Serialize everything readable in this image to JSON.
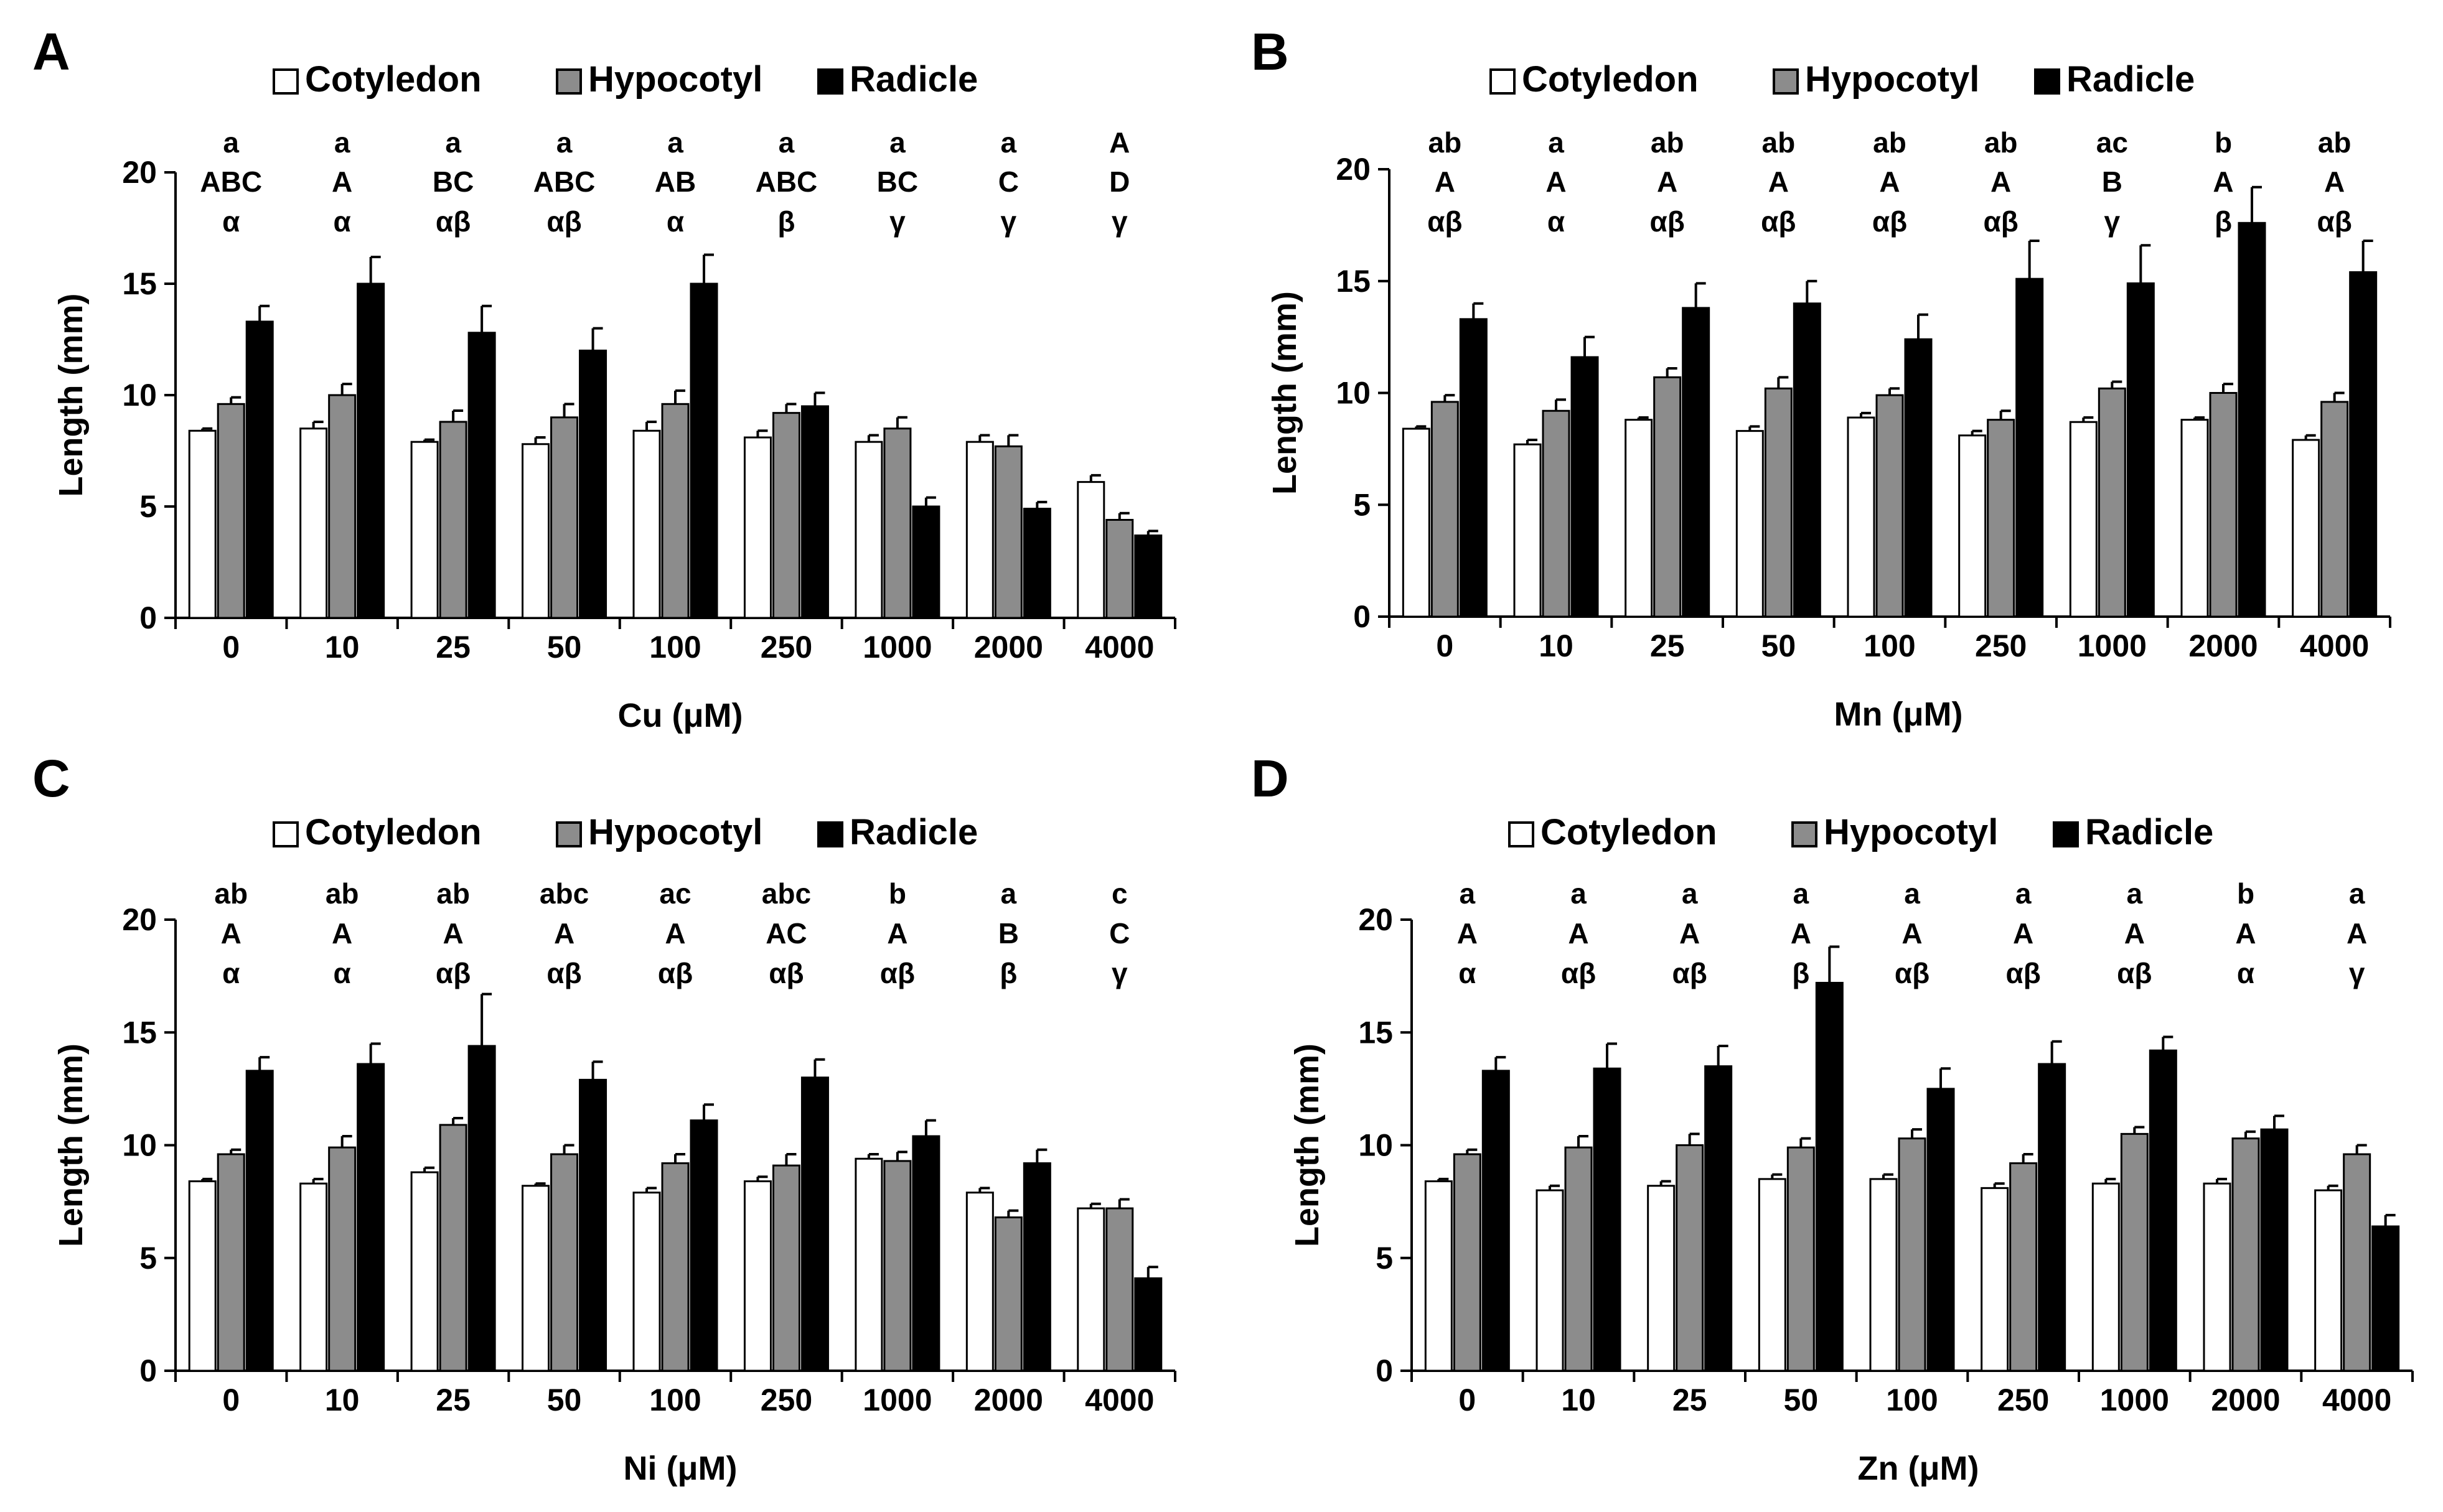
{
  "colors": {
    "Cotyledon": "#ffffff",
    "Hypocotyl": "#8c8c8c",
    "Radicle": "#000000",
    "axis": "#000000"
  },
  "chart_data": [
    {
      "type": "bar",
      "panel": "A",
      "xlabel": "Cu (μM)",
      "ylabel": "Length (mm)",
      "ylim": [
        0,
        20
      ],
      "yticks": [
        0,
        5,
        10,
        15,
        20
      ],
      "grid": false,
      "legend": "top",
      "categories": [
        "0",
        "10",
        "25",
        "50",
        "100",
        "250",
        "1000",
        "2000",
        "4000"
      ],
      "series": [
        {
          "name": "Cotyledon",
          "values": [
            8.4,
            8.5,
            7.9,
            7.8,
            8.4,
            8.1,
            7.9,
            7.9,
            6.1
          ],
          "errors": [
            0.1,
            0.3,
            0.1,
            0.3,
            0.4,
            0.3,
            0.3,
            0.3,
            0.3
          ]
        },
        {
          "name": "Hypocotyl",
          "values": [
            9.6,
            10.0,
            8.8,
            9.0,
            9.6,
            9.2,
            8.5,
            7.7,
            4.4
          ],
          "errors": [
            0.3,
            0.5,
            0.5,
            0.6,
            0.6,
            0.4,
            0.5,
            0.5,
            0.3
          ]
        },
        {
          "name": "Radicle",
          "values": [
            13.3,
            15.0,
            12.8,
            12.0,
            15.0,
            9.5,
            5.0,
            4.9,
            3.7
          ],
          "errors": [
            0.7,
            1.2,
            1.2,
            1.0,
            1.3,
            0.6,
            0.4,
            0.3,
            0.2
          ]
        }
      ],
      "sig_letters": [
        [
          "a",
          "ABC",
          "α"
        ],
        [
          "a",
          "A",
          "α"
        ],
        [
          "a",
          "BC",
          "αβ"
        ],
        [
          "a",
          "ABC",
          "αβ"
        ],
        [
          "a",
          "AB",
          "α"
        ],
        [
          "a",
          "ABC",
          "β"
        ],
        [
          "a",
          "BC",
          "γ"
        ],
        [
          "a",
          "C",
          "γ"
        ],
        [
          "A",
          "D",
          "γ"
        ]
      ]
    },
    {
      "type": "bar",
      "panel": "B",
      "xlabel": "Mn (μM)",
      "ylabel": "Length (mm)",
      "ylim": [
        0,
        20
      ],
      "yticks": [
        0,
        5,
        10,
        15,
        20
      ],
      "grid": false,
      "legend": "top",
      "categories": [
        "0",
        "10",
        "25",
        "50",
        "100",
        "250",
        "1000",
        "2000",
        "4000"
      ],
      "series": [
        {
          "name": "Cotyledon",
          "values": [
            8.4,
            7.7,
            8.8,
            8.3,
            8.9,
            8.1,
            8.7,
            8.8,
            7.9
          ],
          "errors": [
            0.1,
            0.2,
            0.1,
            0.2,
            0.2,
            0.2,
            0.2,
            0.1,
            0.2
          ]
        },
        {
          "name": "Hypocotyl",
          "values": [
            9.6,
            9.2,
            10.7,
            10.2,
            9.9,
            8.8,
            10.2,
            10.0,
            9.6
          ],
          "errors": [
            0.3,
            0.5,
            0.4,
            0.5,
            0.3,
            0.4,
            0.3,
            0.4,
            0.4
          ]
        },
        {
          "name": "Radicle",
          "values": [
            13.3,
            11.6,
            13.8,
            14.0,
            12.4,
            15.1,
            14.9,
            17.6,
            15.4
          ],
          "errors": [
            0.7,
            0.9,
            1.1,
            1.0,
            1.1,
            1.7,
            1.7,
            1.6,
            1.4
          ]
        }
      ],
      "sig_letters": [
        [
          "ab",
          "A",
          "αβ"
        ],
        [
          "a",
          "A",
          "α"
        ],
        [
          "ab",
          "A",
          "αβ"
        ],
        [
          "ab",
          "A",
          "αβ"
        ],
        [
          "ab",
          "A",
          "αβ"
        ],
        [
          "ab",
          "A",
          "αβ"
        ],
        [
          "ac",
          "B",
          "γ"
        ],
        [
          "b",
          "A",
          "β"
        ],
        [
          "ab",
          "A",
          "αβ"
        ]
      ]
    },
    {
      "type": "bar",
      "panel": "C",
      "xlabel": "Ni (μM)",
      "ylabel": "Length (mm)",
      "ylim": [
        0,
        20
      ],
      "yticks": [
        0,
        5,
        10,
        15,
        20
      ],
      "grid": false,
      "legend": "top",
      "categories": [
        "0",
        "10",
        "25",
        "50",
        "100",
        "250",
        "1000",
        "2000",
        "4000"
      ],
      "series": [
        {
          "name": "Cotyledon",
          "values": [
            8.4,
            8.3,
            8.8,
            8.2,
            7.9,
            8.4,
            9.4,
            7.9,
            7.2
          ],
          "errors": [
            0.1,
            0.2,
            0.2,
            0.1,
            0.2,
            0.2,
            0.2,
            0.2,
            0.2
          ]
        },
        {
          "name": "Hypocotyl",
          "values": [
            9.6,
            9.9,
            10.9,
            9.6,
            9.2,
            9.1,
            9.3,
            6.8,
            7.2
          ],
          "errors": [
            0.2,
            0.5,
            0.3,
            0.4,
            0.4,
            0.5,
            0.4,
            0.3,
            0.4
          ]
        },
        {
          "name": "Radicle",
          "values": [
            13.3,
            13.6,
            14.4,
            12.9,
            11.1,
            13.0,
            10.4,
            9.2,
            4.1
          ],
          "errors": [
            0.6,
            0.9,
            2.3,
            0.8,
            0.7,
            0.8,
            0.7,
            0.6,
            0.5
          ]
        }
      ],
      "sig_letters": [
        [
          "ab",
          "A",
          "α"
        ],
        [
          "ab",
          "A",
          "α"
        ],
        [
          "ab",
          "A",
          "αβ"
        ],
        [
          "abc",
          "A",
          "αβ"
        ],
        [
          "ac",
          "A",
          "αβ"
        ],
        [
          "abc",
          "AC",
          "αβ"
        ],
        [
          "b",
          "A",
          "αβ"
        ],
        [
          "a",
          "B",
          "β"
        ],
        [
          "c",
          "C",
          "γ"
        ]
      ]
    },
    {
      "type": "bar",
      "panel": "D",
      "xlabel": "Zn (μM)",
      "ylabel": "Length (mm)",
      "ylim": [
        0,
        20
      ],
      "yticks": [
        0,
        5,
        10,
        15,
        20
      ],
      "grid": false,
      "legend": "top",
      "categories": [
        "0",
        "10",
        "25",
        "50",
        "100",
        "250",
        "1000",
        "2000",
        "4000"
      ],
      "series": [
        {
          "name": "Cotyledon",
          "values": [
            8.4,
            8.0,
            8.2,
            8.5,
            8.5,
            8.1,
            8.3,
            8.3,
            8.0
          ],
          "errors": [
            0.1,
            0.2,
            0.2,
            0.2,
            0.2,
            0.2,
            0.2,
            0.2,
            0.2
          ]
        },
        {
          "name": "Hypocotyl",
          "values": [
            9.6,
            9.9,
            10.0,
            9.9,
            10.3,
            9.2,
            10.5,
            10.3,
            9.6
          ],
          "errors": [
            0.2,
            0.5,
            0.5,
            0.4,
            0.4,
            0.4,
            0.3,
            0.3,
            0.4
          ]
        },
        {
          "name": "Radicle",
          "values": [
            13.3,
            13.4,
            13.5,
            17.2,
            12.5,
            13.6,
            14.2,
            10.7,
            6.4
          ],
          "errors": [
            0.6,
            1.1,
            0.9,
            1.6,
            0.9,
            1.0,
            0.6,
            0.6,
            0.5
          ]
        }
      ],
      "sig_letters": [
        [
          "a",
          "A",
          "α"
        ],
        [
          "a",
          "A",
          "αβ"
        ],
        [
          "a",
          "A",
          "αβ"
        ],
        [
          "a",
          "A",
          "β"
        ],
        [
          "a",
          "A",
          "αβ"
        ],
        [
          "a",
          "A",
          "αβ"
        ],
        [
          "a",
          "A",
          "αβ"
        ],
        [
          "b",
          "A",
          "α"
        ],
        [
          "a",
          "A",
          "γ"
        ]
      ]
    }
  ]
}
